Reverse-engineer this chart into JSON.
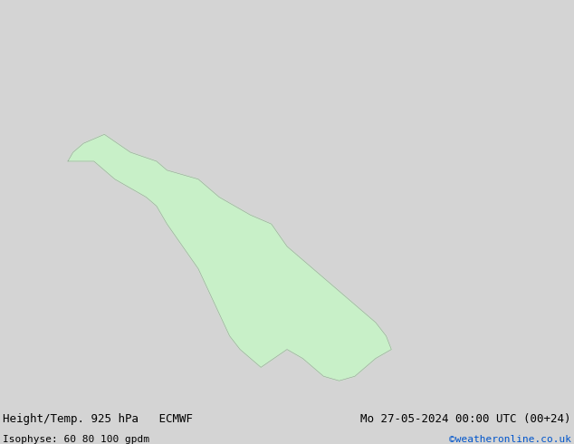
{
  "title_left": "Height/Temp. 925 hPa   ECMWF",
  "title_right": "Mo 27-05-2024 00:00 UTC (00+24)",
  "subtitle_left": "Isophyse: 60 80 100 gpdm",
  "subtitle_right": "©weatheronline.co.uk",
  "ocean_color": "#e8e8e8",
  "land_color": "#c8f0c8",
  "border_color": "#989898",
  "bottom_bg": "#d4d4d4",
  "title_fontsize": 9,
  "subtitle_fontsize": 8,
  "copyright_color": "#0055cc",
  "bottom_text_color": "#000000",
  "figsize": [
    6.34,
    4.9
  ],
  "dpi": 100,
  "map_extent": [
    -30,
    80,
    -40,
    50
  ],
  "contour_colors": [
    "#ff0000",
    "#ff6600",
    "#ffcc00",
    "#33cc00",
    "#00ccff",
    "#0000ff",
    "#cc00cc",
    "#888800",
    "#00aaaa",
    "#888888",
    "#ff66aa",
    "#6600cc",
    "#00cc66",
    "#cc6600",
    "#0066ff"
  ],
  "n_ensemble": 15,
  "seed": 42
}
